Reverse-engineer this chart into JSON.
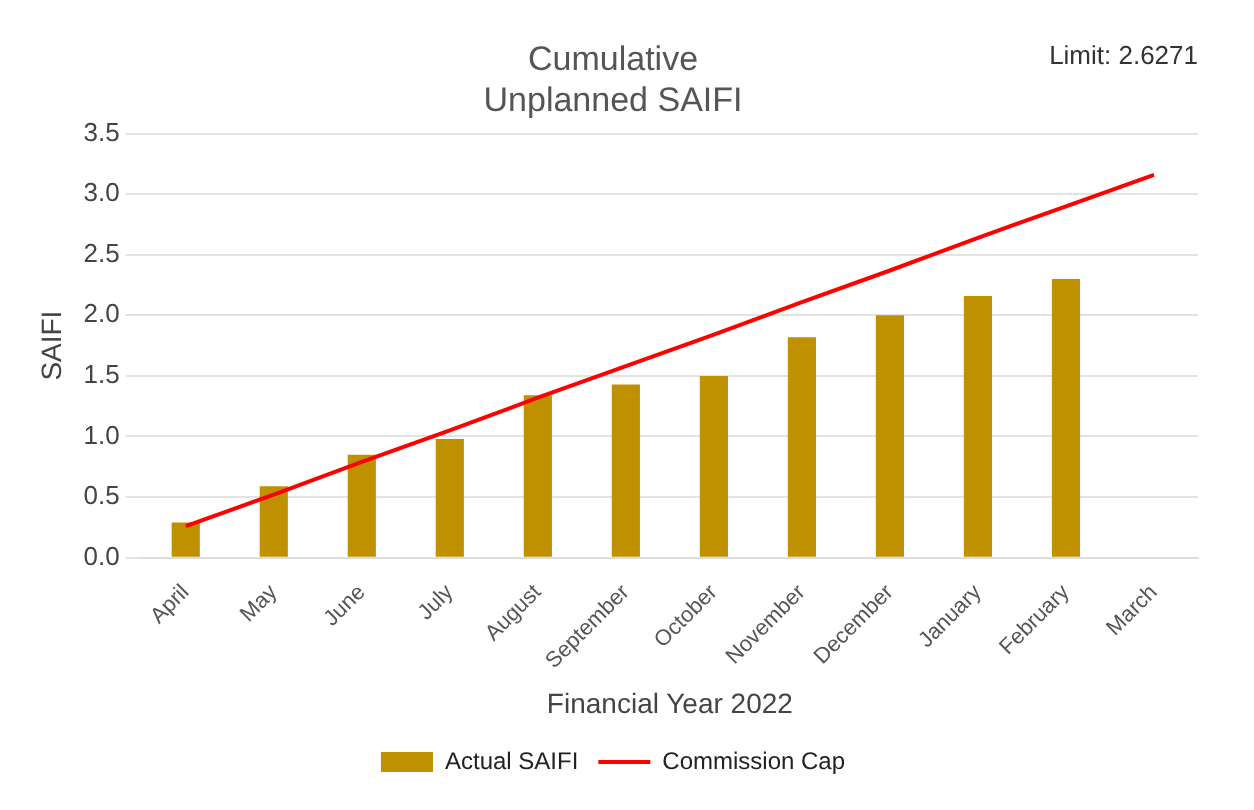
{
  "chart_data": {
    "type": "bar",
    "title": "Cumulative\nUnplanned SAIFI",
    "xlabel": "Financial Year 2022",
    "ylabel": "SAIFI",
    "annotations": [
      "Limit: 2.6271"
    ],
    "categories": [
      "April",
      "May",
      "June",
      "July",
      "August",
      "September",
      "October",
      "November",
      "December",
      "January",
      "February",
      "March"
    ],
    "series": [
      {
        "name": "Actual SAIFI",
        "color": "#bf9000",
        "values": [
          0.29,
          0.59,
          0.85,
          0.98,
          1.34,
          1.43,
          1.5,
          1.82,
          2.0,
          2.16,
          2.3,
          null
        ]
      },
      {
        "name": "Commission Cap",
        "type": "line",
        "color": "#ff0000",
        "marker": "none",
        "values": [
          0.26,
          0.52,
          0.79,
          1.05,
          1.32,
          1.58,
          1.84,
          2.11,
          2.37,
          2.64,
          2.9,
          3.16
        ]
      }
    ],
    "ylim": [
      0,
      3.5
    ],
    "yticks": [
      {
        "value": 0,
        "label": "0.0"
      },
      {
        "value": 0.5,
        "label": "0.5"
      },
      {
        "value": 1,
        "label": "1.0"
      },
      {
        "value": 1.5,
        "label": "1.5"
      },
      {
        "value": 2,
        "label": "2.0"
      },
      {
        "value": 2.5,
        "label": "2.5"
      },
      {
        "value": 3,
        "label": "3.0"
      },
      {
        "value": 3.5,
        "label": "3.5"
      }
    ],
    "grid": "y",
    "legend": "bottom"
  }
}
